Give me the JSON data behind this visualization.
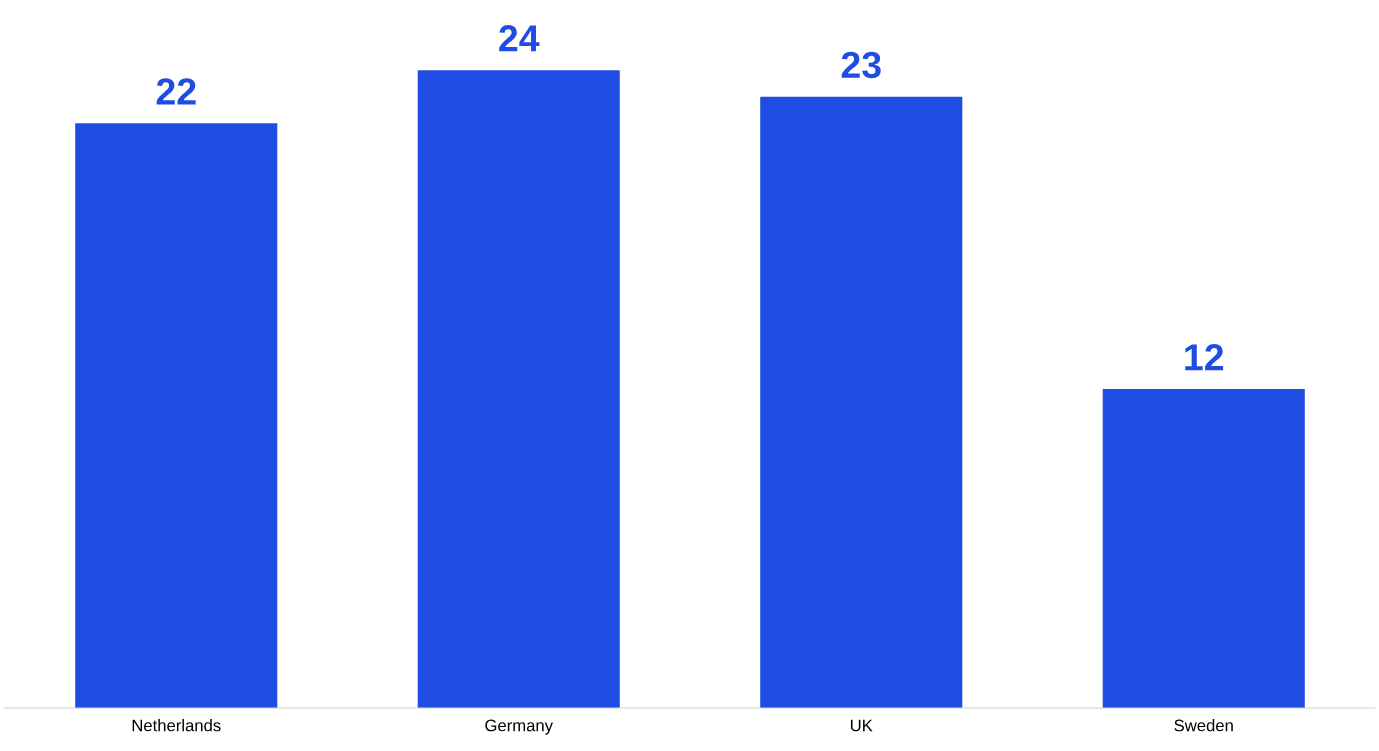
{
  "chart_data": {
    "type": "bar",
    "categories": [
      "Netherlands",
      "Germany",
      "UK",
      "Sweden"
    ],
    "values": [
      22,
      24,
      23,
      12
    ],
    "color": "#1f4ce2",
    "data_labels": true,
    "tick_labels": "x"
  }
}
